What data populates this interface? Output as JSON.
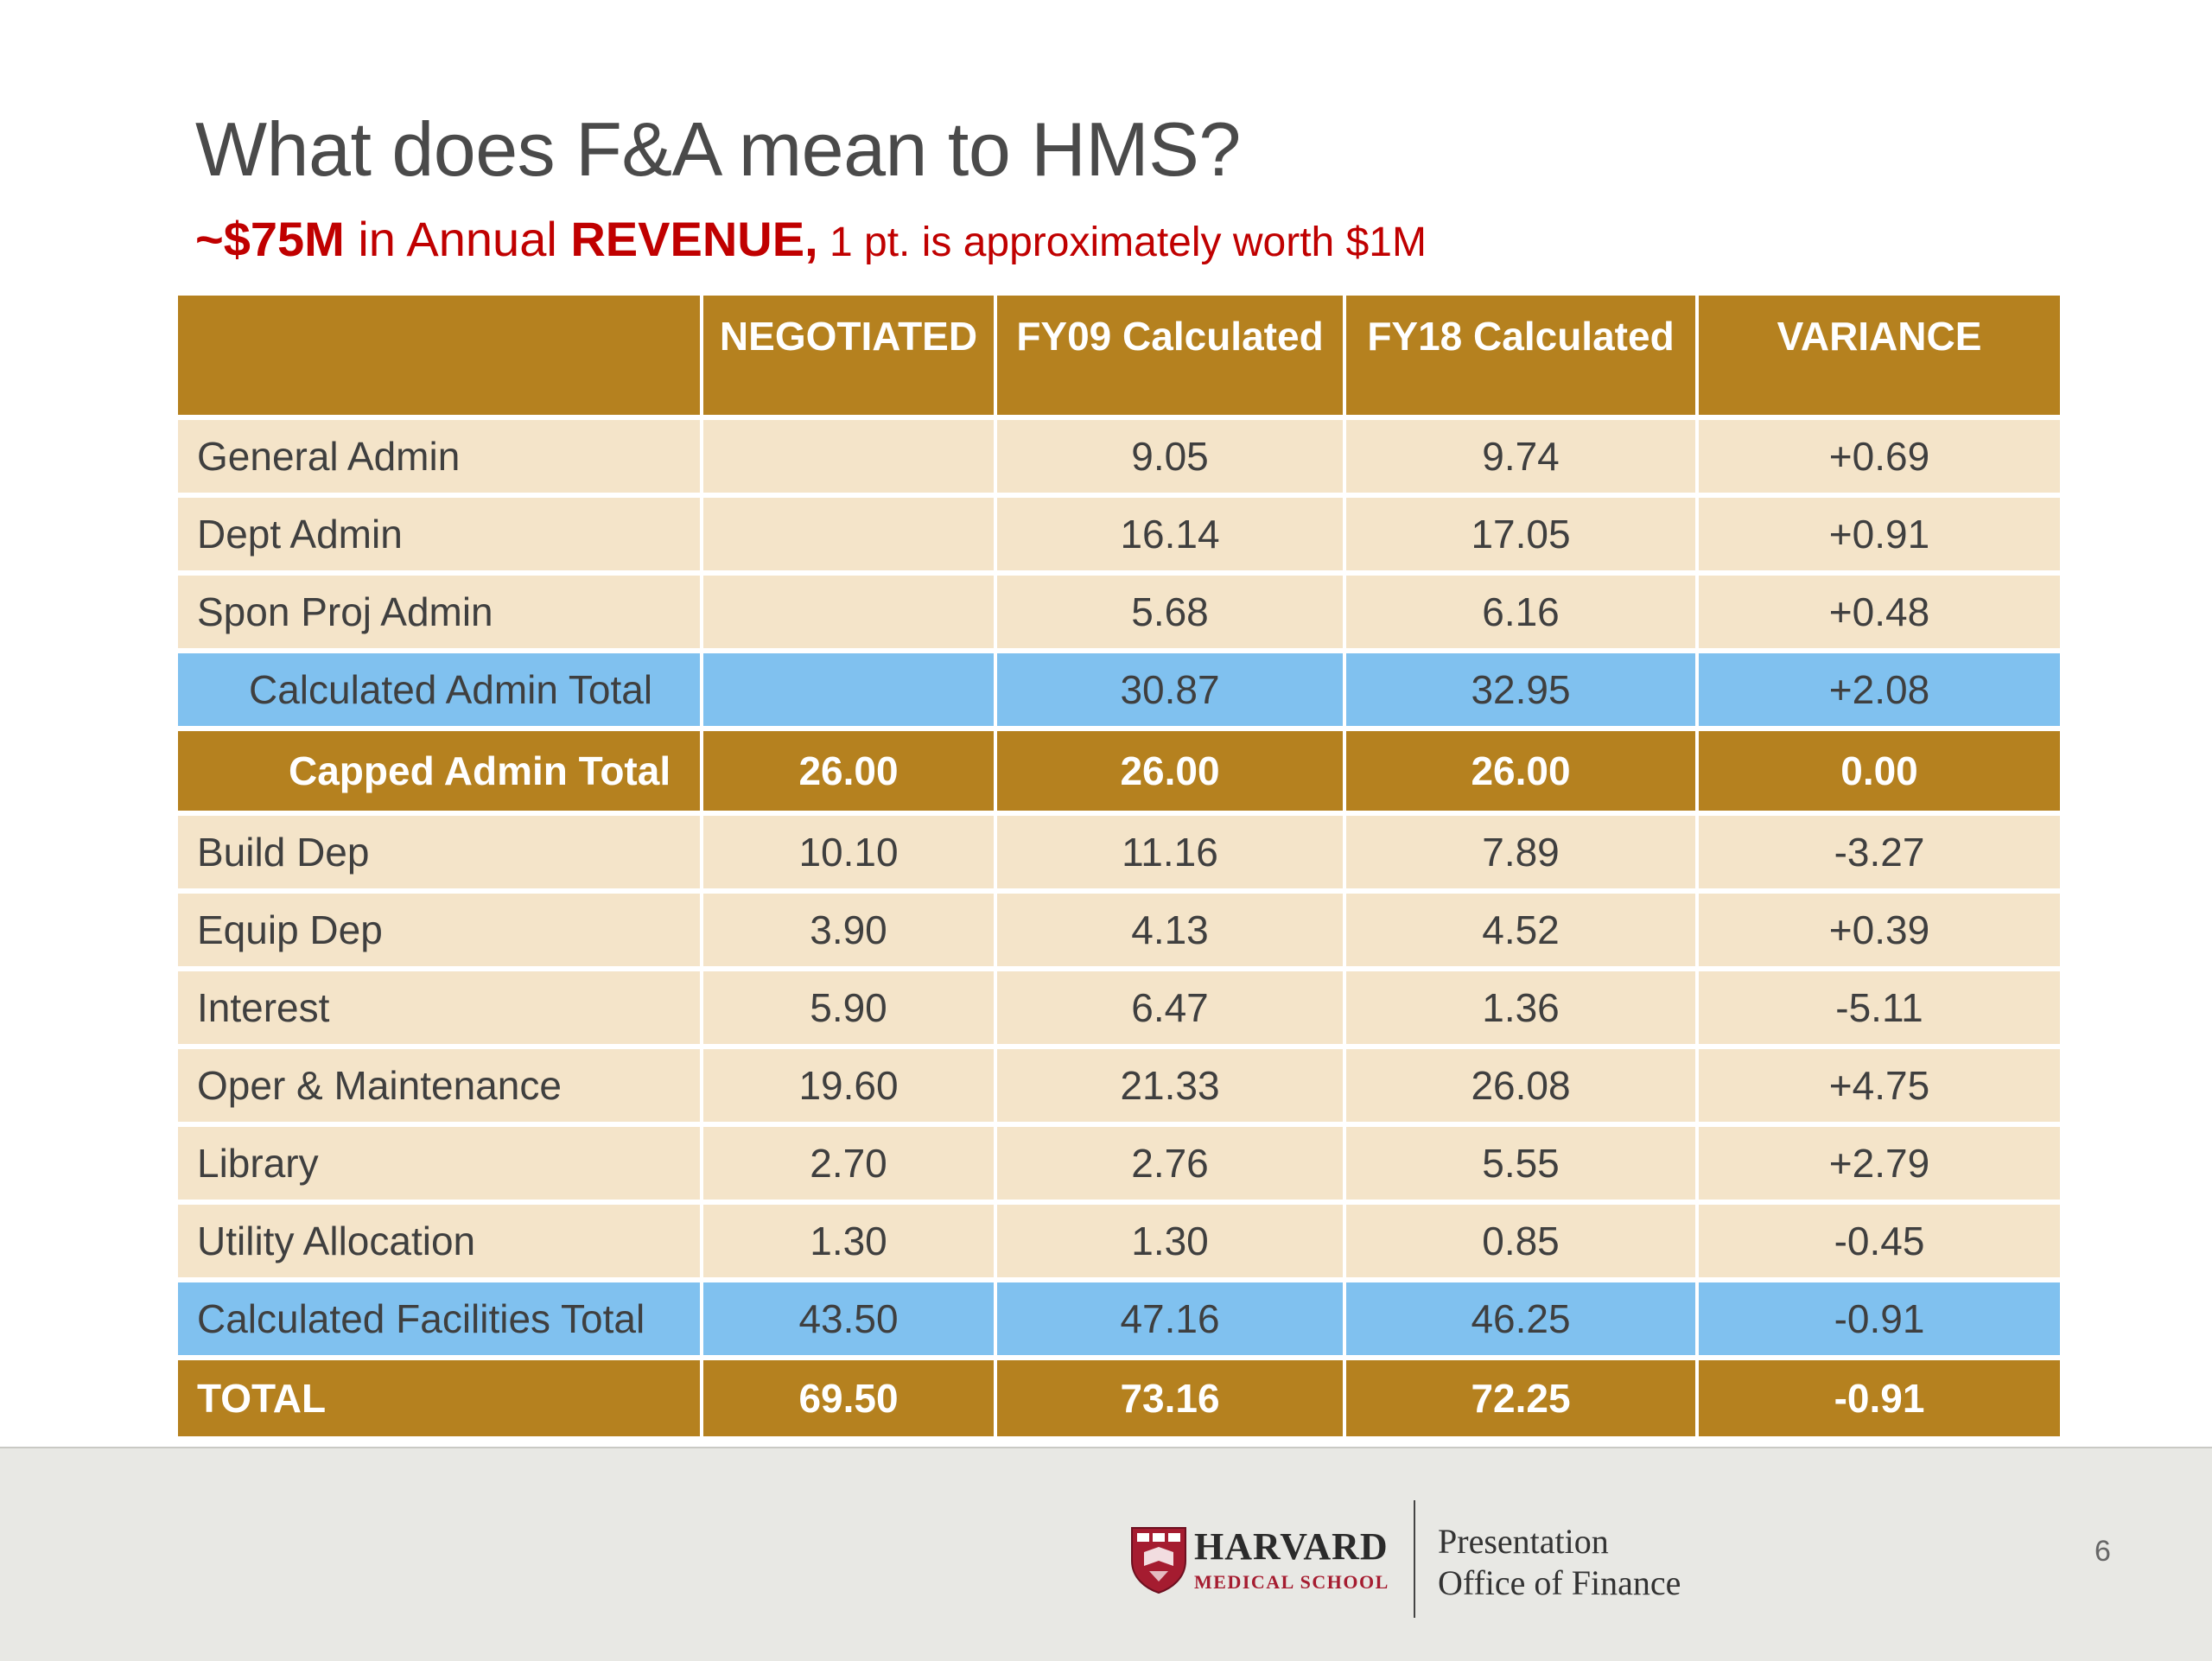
{
  "title": "What does F&A mean to HMS?",
  "subtitle": {
    "amount": "~$75M",
    "mid": " in Annual ",
    "revenue": "REVENUE,",
    "note": " 1 pt. is approximately worth $1M"
  },
  "table": {
    "columns": [
      "",
      "NEGOTIATED",
      "FY09 Calculated",
      "FY18 Calculated",
      "VARIANCE"
    ],
    "rows": [
      {
        "style": "row",
        "indent": "",
        "cells": [
          "General Admin",
          "",
          "9.05",
          "9.74",
          "+0.69"
        ]
      },
      {
        "style": "row",
        "indent": "",
        "cells": [
          "Dept Admin",
          "",
          "16.14",
          "17.05",
          "+0.91"
        ]
      },
      {
        "style": "row",
        "indent": "",
        "cells": [
          "Spon Proj Admin",
          "",
          "5.68",
          "6.16",
          "+0.48"
        ]
      },
      {
        "style": "blue",
        "indent": "ind",
        "cells": [
          "Calculated Admin Total",
          "",
          "30.87",
          "32.95",
          "+2.08"
        ]
      },
      {
        "style": "gold",
        "indent": "cap",
        "cells": [
          "Capped Admin Total",
          "26.00",
          "26.00",
          "26.00",
          "0.00"
        ]
      },
      {
        "style": "row",
        "indent": "",
        "cells": [
          "Build Dep",
          "10.10",
          "11.16",
          "7.89",
          "-3.27"
        ]
      },
      {
        "style": "row",
        "indent": "",
        "cells": [
          "Equip Dep",
          "3.90",
          "4.13",
          "4.52",
          "+0.39"
        ]
      },
      {
        "style": "row",
        "indent": "",
        "cells": [
          "Interest",
          "5.90",
          "6.47",
          "1.36",
          "-5.11"
        ]
      },
      {
        "style": "row",
        "indent": "",
        "cells": [
          "Oper & Maintenance",
          "19.60",
          "21.33",
          "26.08",
          "+4.75"
        ]
      },
      {
        "style": "row",
        "indent": "",
        "cells": [
          "Library",
          "2.70",
          "2.76",
          "5.55",
          "+2.79"
        ]
      },
      {
        "style": "row",
        "indent": "",
        "cells": [
          "Utility Allocation",
          "1.30",
          "1.30",
          "0.85",
          "-0.45"
        ]
      },
      {
        "style": "blue",
        "indent": "",
        "cells": [
          "Calculated Facilities Total",
          "43.50",
          "47.16",
          "46.25",
          "-0.91"
        ]
      },
      {
        "style": "total",
        "indent": "",
        "cells": [
          "TOTAL",
          "69.50",
          "73.16",
          "72.25",
          "-0.91"
        ]
      }
    ]
  },
  "footer": {
    "logo_line1": "HARVARD",
    "logo_line2": "MEDICAL SCHOOL",
    "logo_icon": "harvard-shield-icon",
    "dept_line1": "Presentation",
    "dept_line2": "Office of Finance",
    "page_number": "6"
  },
  "colors": {
    "gold": "#b5811f",
    "tan": "#f4e4c9",
    "blue": "#80c1ef",
    "red": "#c00000",
    "crimson": "#a51c30"
  }
}
